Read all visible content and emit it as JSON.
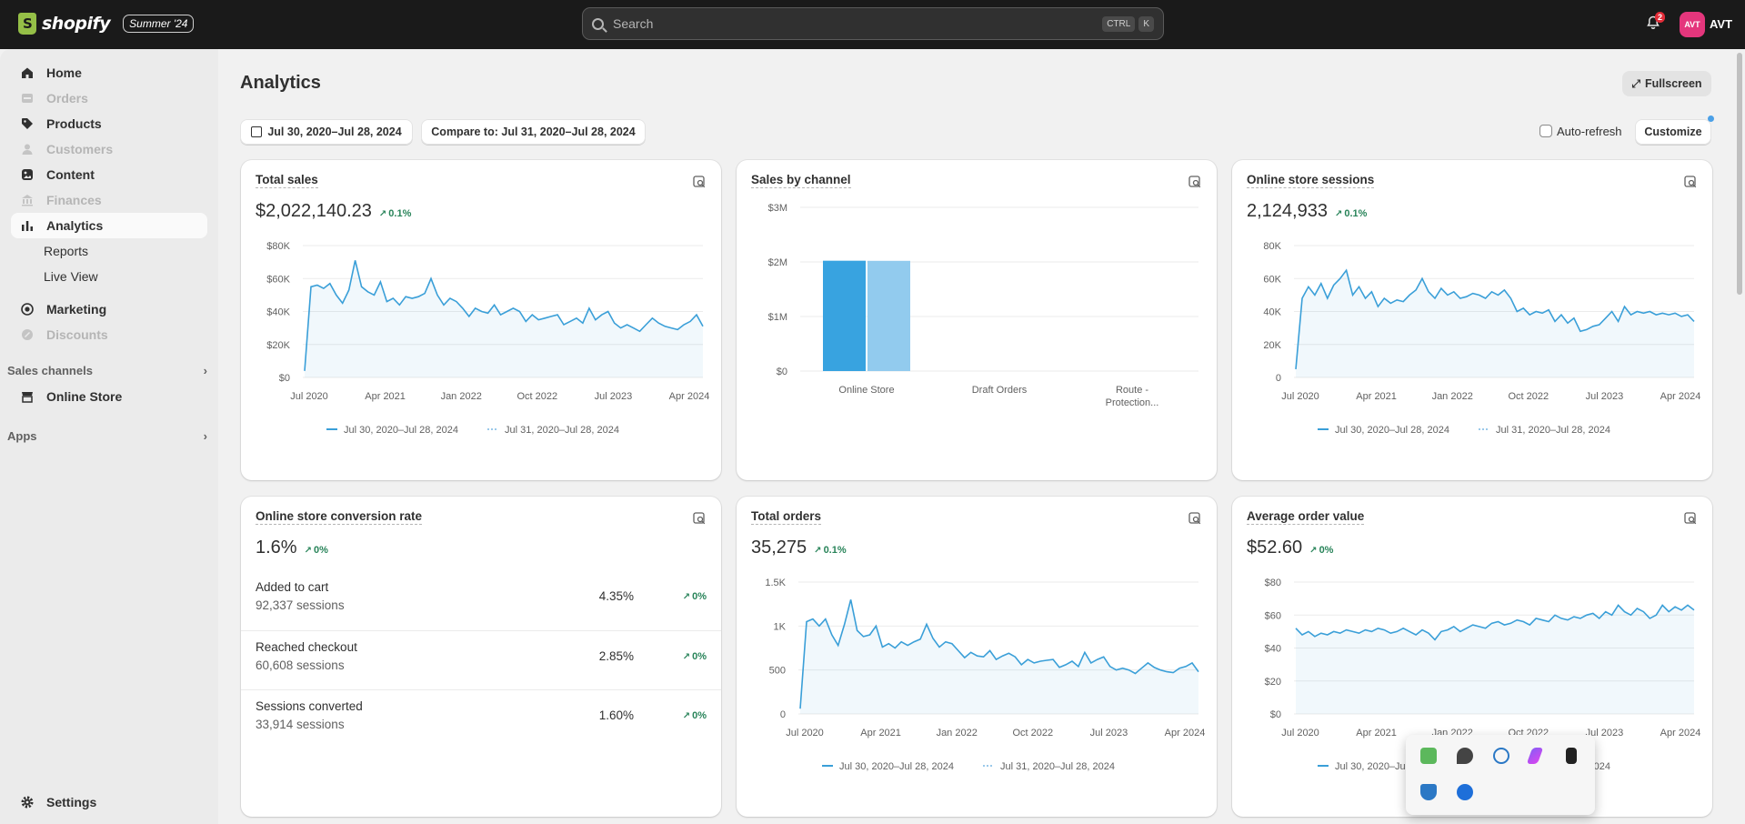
{
  "topbar": {
    "brand": "shopify",
    "edition_badge": "Summer '24",
    "search_placeholder": "Search",
    "shortcut_keys": [
      "CTRL",
      "K"
    ],
    "notification_count": "2",
    "avatar_initials": "AVT",
    "user_name": "AVT"
  },
  "sidebar": {
    "items": [
      {
        "label": "Home",
        "icon": "home-icon",
        "state": "normal"
      },
      {
        "label": "Orders",
        "icon": "orders-icon",
        "state": "disabled"
      },
      {
        "label": "Products",
        "icon": "tag-icon",
        "state": "normal"
      },
      {
        "label": "Customers",
        "icon": "person-icon",
        "state": "disabled"
      },
      {
        "label": "Content",
        "icon": "content-icon",
        "state": "normal"
      },
      {
        "label": "Finances",
        "icon": "bank-icon",
        "state": "disabled"
      },
      {
        "label": "Analytics",
        "icon": "chart-icon",
        "state": "active"
      }
    ],
    "sub_items": [
      "Reports",
      "Live View"
    ],
    "items2": [
      {
        "label": "Marketing",
        "icon": "target-icon",
        "state": "normal"
      },
      {
        "label": "Discounts",
        "icon": "discount-icon",
        "state": "disabled"
      }
    ],
    "sales_channels_label": "Sales channels",
    "online_store_label": "Online Store",
    "apps_label": "Apps",
    "settings_label": "Settings"
  },
  "page": {
    "title": "Analytics",
    "fullscreen_label": "Fullscreen",
    "date_range": "Jul 30, 2020–Jul 28, 2024",
    "compare_label": "Compare to: Jul 31, 2020–Jul 28, 2024",
    "auto_refresh_label": "Auto-refresh",
    "customize_label": "Customize"
  },
  "colors": {
    "accent_line": "#3a9fd8",
    "bar_primary": "#38a3e0",
    "bar_compare": "#92cbee",
    "positive": "#29845a"
  },
  "cards": {
    "total_sales": {
      "title": "Total sales",
      "value": "$2,022,140.23",
      "delta": "0.1%"
    },
    "sales_by_channel": {
      "title": "Sales by channel"
    },
    "sessions": {
      "title": "Online store sessions",
      "value": "2,124,933",
      "delta": "0.1%"
    },
    "conversion": {
      "title": "Online store conversion rate",
      "value": "1.6%",
      "delta": "0%",
      "rows": [
        {
          "label": "Added to cart",
          "sessions": "92,337 sessions",
          "pct": "4.35%",
          "delta": "0%"
        },
        {
          "label": "Reached checkout",
          "sessions": "60,608 sessions",
          "pct": "2.85%",
          "delta": "0%"
        },
        {
          "label": "Sessions converted",
          "sessions": "33,914 sessions",
          "pct": "1.60%",
          "delta": "0%"
        }
      ]
    },
    "total_orders": {
      "title": "Total orders",
      "value": "35,275",
      "delta": "0.1%"
    },
    "aov": {
      "title": "Average order value",
      "value": "$52.60",
      "delta": "0%"
    }
  },
  "legend": {
    "primary": "Jul 30, 2020–Jul 28, 2024",
    "compare": "Jul 31, 2020–Jul 28, 2024"
  },
  "chart_data": [
    {
      "id": "total_sales",
      "type": "line",
      "x_ticks": [
        "Jul 2020",
        "Apr 2021",
        "Jan 2022",
        "Oct 2022",
        "Jul 2023",
        "Apr 2024"
      ],
      "y_ticks": [
        "$0",
        "$20K",
        "$40K",
        "$60K",
        "$80K"
      ],
      "ylim": [
        0,
        80000
      ],
      "series": [
        {
          "name": "Jul 30, 2020–Jul 28, 2024",
          "values": [
            4000,
            55000,
            56000,
            54000,
            57000,
            50000,
            45000,
            53000,
            71000,
            55000,
            52000,
            50000,
            58000,
            46000,
            48000,
            44000,
            49000,
            48000,
            49000,
            51000,
            60000,
            50000,
            44000,
            48000,
            46000,
            42000,
            37000,
            42000,
            40000,
            39000,
            44000,
            38000,
            40000,
            42000,
            40000,
            34000,
            38000,
            35000,
            36000,
            37000,
            38000,
            32000,
            34000,
            36000,
            33000,
            42000,
            35000,
            38000,
            40000,
            33000,
            30000,
            32000,
            30000,
            28000,
            32000,
            36000,
            33000,
            31000,
            30000,
            29000,
            32000,
            34000,
            38000,
            31000
          ]
        }
      ]
    },
    {
      "id": "sales_by_channel",
      "type": "bar",
      "categories": [
        "Online Store",
        "Draft Orders",
        "Route - Protection..."
      ],
      "y_ticks": [
        "$0",
        "$1M",
        "$2M",
        "$3M"
      ],
      "ylim": [
        0,
        3000000
      ],
      "series": [
        {
          "name": "Jul 30, 2020–Jul 28, 2024",
          "values": [
            2022140,
            0,
            0
          ]
        },
        {
          "name": "Jul 31, 2020–Jul 28, 2024",
          "values": [
            2020000,
            0,
            0
          ]
        }
      ]
    },
    {
      "id": "sessions",
      "type": "line",
      "x_ticks": [
        "Jul 2020",
        "Apr 2021",
        "Jan 2022",
        "Oct 2022",
        "Jul 2023",
        "Apr 2024"
      ],
      "y_ticks": [
        "0",
        "20K",
        "40K",
        "60K",
        "80K"
      ],
      "ylim": [
        0,
        80000
      ],
      "series": [
        {
          "name": "Jul 30, 2020–Jul 28, 2024",
          "values": [
            5000,
            48000,
            55000,
            50000,
            57000,
            48000,
            56000,
            60000,
            65000,
            50000,
            55000,
            48000,
            52000,
            43000,
            48000,
            45000,
            47000,
            46000,
            50000,
            53000,
            60000,
            52000,
            48000,
            54000,
            50000,
            52000,
            48000,
            49000,
            51000,
            50000,
            48000,
            52000,
            50000,
            53000,
            48000,
            40000,
            42000,
            38000,
            40000,
            39000,
            41000,
            34000,
            38000,
            33000,
            36000,
            28000,
            29000,
            31000,
            32000,
            36000,
            40000,
            34000,
            43000,
            38000,
            40000,
            39000,
            40000,
            38000,
            39000,
            38000,
            39000,
            37000,
            38000,
            34000
          ]
        }
      ]
    },
    {
      "id": "total_orders",
      "type": "line",
      "x_ticks": [
        "Jul 2020",
        "Apr 2021",
        "Jan 2022",
        "Oct 2022",
        "Jul 2023",
        "Apr 2024"
      ],
      "y_ticks": [
        "0",
        "500",
        "1K",
        "1.5K"
      ],
      "ylim": [
        0,
        1500
      ],
      "series": [
        {
          "name": "Jul 30, 2020–Jul 28, 2024",
          "values": [
            60,
            1050,
            1080,
            1000,
            1080,
            900,
            780,
            1020,
            1300,
            950,
            880,
            900,
            1000,
            760,
            800,
            750,
            820,
            780,
            820,
            850,
            1020,
            860,
            760,
            820,
            800,
            720,
            640,
            700,
            660,
            650,
            720,
            620,
            660,
            690,
            650,
            560,
            620,
            580,
            600,
            610,
            620,
            530,
            560,
            600,
            540,
            700,
            580,
            620,
            650,
            540,
            500,
            520,
            500,
            460,
            520,
            580,
            530,
            500,
            480,
            470,
            520,
            540,
            580,
            480
          ]
        }
      ]
    },
    {
      "id": "aov",
      "type": "line",
      "x_ticks": [
        "Jul 2020",
        "Apr 2021",
        "Jan 2022",
        "Oct 2022",
        "Jul 2023",
        "Apr 2024"
      ],
      "y_ticks": [
        "$0",
        "$20",
        "$40",
        "$60",
        "$80"
      ],
      "ylim": [
        0,
        80
      ],
      "series": [
        {
          "name": "Jul 30, 2020–Jul 28, 2024",
          "values": [
            52,
            48,
            50,
            47,
            49,
            48,
            50,
            49,
            51,
            50,
            49,
            51,
            50,
            52,
            51,
            49,
            50,
            52,
            50,
            48,
            51,
            49,
            45,
            50,
            51,
            53,
            50,
            52,
            54,
            53,
            52,
            55,
            56,
            54,
            55,
            57,
            56,
            54,
            58,
            57,
            56,
            60,
            58,
            57,
            59,
            58,
            60,
            61,
            58,
            62,
            60,
            66,
            62,
            60,
            64,
            62,
            58,
            60,
            66,
            62,
            65,
            63,
            66,
            63
          ]
        }
      ]
    }
  ],
  "tray_icons": [
    "check-shield-icon",
    "pin-app-icon",
    "network-icon",
    "pen-icon",
    "usb-icon",
    "defender-icon",
    "bluetooth-icon"
  ]
}
